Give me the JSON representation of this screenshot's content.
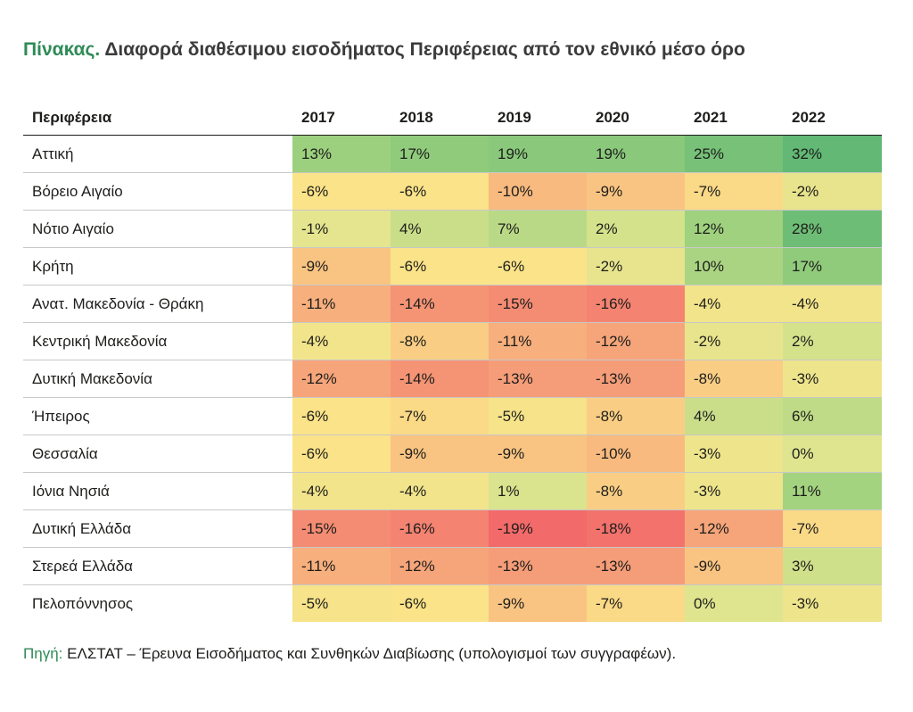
{
  "title": {
    "prefix": "Πίνακας.",
    "text": " Διαφορά διαθέσιμου εισοδήματος Περιφέρειας από τον εθνικό μέσο όρο"
  },
  "source": {
    "prefix": "Πηγή:",
    "text": " ΕΛΣΤΑΤ – Έρευνα Εισοδήματος και Συνθηκών Διαβίωσης (υπολογισμοί των συγγραφέων)."
  },
  "colors": {
    "accent": "#2e8b57",
    "scale": [
      "#f26a6a",
      "#f6a57a",
      "#fbe389",
      "#dfe58f",
      "#9fd17f",
      "#62b874"
    ]
  },
  "chart_data": {
    "type": "heatmap",
    "columns": [
      "Περιφέρεια",
      "2017",
      "2018",
      "2019",
      "2020",
      "2021",
      "2022"
    ],
    "rows": [
      {
        "region": "Αττική",
        "values": [
          13,
          17,
          19,
          19,
          25,
          32
        ]
      },
      {
        "region": "Βόρειο Αιγαίο",
        "values": [
          -6,
          -6,
          -10,
          -9,
          -7,
          -2
        ]
      },
      {
        "region": "Νότιο Αιγαίο",
        "values": [
          -1,
          4,
          7,
          2,
          12,
          28
        ]
      },
      {
        "region": "Κρήτη",
        "values": [
          -9,
          -6,
          -6,
          -2,
          10,
          17
        ]
      },
      {
        "region": "Ανατ. Μακεδονία - Θράκη",
        "values": [
          -11,
          -14,
          -15,
          -16,
          -4,
          -4
        ]
      },
      {
        "region": "Κεντρική Μακεδονία",
        "values": [
          -4,
          -8,
          -11,
          -12,
          -2,
          2
        ]
      },
      {
        "region": "Δυτική Μακεδονία",
        "values": [
          -12,
          -14,
          -13,
          -13,
          -8,
          -3
        ]
      },
      {
        "region": "Ήπειρος",
        "values": [
          -6,
          -7,
          -5,
          -8,
          4,
          6
        ]
      },
      {
        "region": "Θεσσαλία",
        "values": [
          -6,
          -9,
          -9,
          -10,
          -3,
          0
        ]
      },
      {
        "region": "Ιόνια Νησιά",
        "values": [
          -4,
          -4,
          1,
          -8,
          -3,
          11
        ]
      },
      {
        "region": "Δυτική Ελλάδα",
        "values": [
          -15,
          -16,
          -19,
          -18,
          -12,
          -7
        ]
      },
      {
        "region": "Στερεά Ελλάδα",
        "values": [
          -11,
          -12,
          -13,
          -13,
          -9,
          3
        ]
      },
      {
        "region": "Πελοπόννησος",
        "values": [
          -5,
          -6,
          -9,
          -7,
          0,
          -3
        ]
      }
    ],
    "value_suffix": "%"
  }
}
